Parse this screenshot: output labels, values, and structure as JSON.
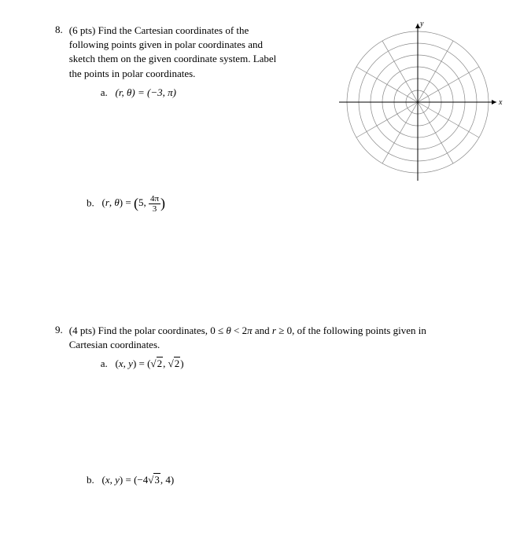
{
  "problems": {
    "p8": {
      "number": "8.",
      "points": "(6 pts)",
      "text": "Find the Cartesian coordinates of the following points given in polar coordinates and sketch them on the given coordinate system. Label the points in polar coordinates.",
      "sub_a": {
        "label": "a.",
        "expr": "(r, θ) = (−3, π)"
      },
      "sub_b": {
        "label": "b.",
        "expr_prefix": "(r, θ) = ",
        "expr_open": "(5,",
        "frac_num": "4π",
        "frac_den": "3",
        "expr_close": ")"
      }
    },
    "p9": {
      "number": "9.",
      "points": "(4 pts)",
      "text": "Find the polar coordinates, 0 ≤ θ < 2π and r ≥ 0, of the following points given in Cartesian coordinates.",
      "sub_a": {
        "label": "a.",
        "expr_prefix": "(x, y) = (",
        "sqrt1": "2",
        "comma": ", ",
        "sqrt2": "2",
        "expr_close": ")"
      },
      "sub_b": {
        "label": "b.",
        "expr_prefix": "(x, y) = (−4",
        "sqrt1": "3",
        "expr_close": ", 4)"
      }
    }
  },
  "grid": {
    "circles": 6,
    "max_radius": 90,
    "angle_lines": 12,
    "stroke": "#888888",
    "arrow_length": 100
  }
}
